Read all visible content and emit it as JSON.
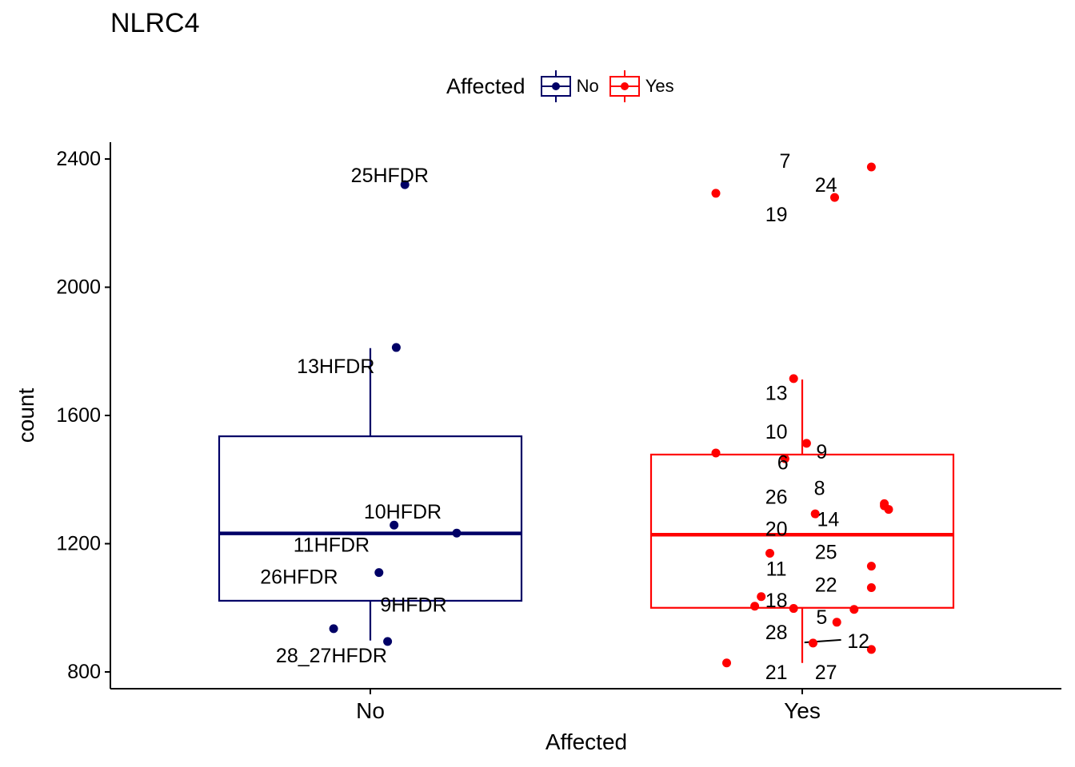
{
  "chart_data": {
    "type": "box",
    "title": "NLRC4",
    "xlabel": "Affected",
    "ylabel": "count",
    "ylim": [
      750,
      2450
    ],
    "yticks": [
      800,
      1200,
      1600,
      2000,
      2400
    ],
    "categories": [
      "No",
      "Yes"
    ],
    "legend": {
      "title": "Affected",
      "position": "top",
      "entries": [
        "No",
        "Yes"
      ]
    },
    "colors": {
      "No": "#000066",
      "Yes": "#ff0000"
    },
    "boxes": [
      {
        "group": "No",
        "q1": 1022,
        "median": 1232,
        "q3": 1535,
        "whisker_low": 898,
        "whisker_high": 1810
      },
      {
        "group": "Yes",
        "q1": 1000,
        "median": 1228,
        "q3": 1478,
        "whisker_low": 828,
        "whisker_high": 1712
      }
    ],
    "points": [
      {
        "group": "No",
        "x": 1.08,
        "y": 2320
      },
      {
        "group": "No",
        "x": 1.06,
        "y": 1812
      },
      {
        "group": "No",
        "x": 1.055,
        "y": 1258
      },
      {
        "group": "No",
        "x": 1.2,
        "y": 1233
      },
      {
        "group": "No",
        "x": 1.02,
        "y": 1110
      },
      {
        "group": "No",
        "x": 0.915,
        "y": 935
      },
      {
        "group": "No",
        "x": 1.04,
        "y": 895
      },
      {
        "group": "Yes",
        "x": 2.16,
        "y": 2375
      },
      {
        "group": "Yes",
        "x": 1.8,
        "y": 2293
      },
      {
        "group": "Yes",
        "x": 2.075,
        "y": 2280
      },
      {
        "group": "Yes",
        "x": 1.98,
        "y": 1715
      },
      {
        "group": "Yes",
        "x": 2.01,
        "y": 1513
      },
      {
        "group": "Yes",
        "x": 1.8,
        "y": 1483
      },
      {
        "group": "Yes",
        "x": 1.96,
        "y": 1465
      },
      {
        "group": "Yes",
        "x": 2.19,
        "y": 1325
      },
      {
        "group": "Yes",
        "x": 2.19,
        "y": 1318
      },
      {
        "group": "Yes",
        "x": 2.2,
        "y": 1307
      },
      {
        "group": "Yes",
        "x": 2.03,
        "y": 1293
      },
      {
        "group": "Yes",
        "x": 1.925,
        "y": 1170
      },
      {
        "group": "Yes",
        "x": 2.16,
        "y": 1130
      },
      {
        "group": "Yes",
        "x": 2.16,
        "y": 1063
      },
      {
        "group": "Yes",
        "x": 1.905,
        "y": 1035
      },
      {
        "group": "Yes",
        "x": 1.89,
        "y": 1005
      },
      {
        "group": "Yes",
        "x": 1.98,
        "y": 998
      },
      {
        "group": "Yes",
        "x": 2.12,
        "y": 995
      },
      {
        "group": "Yes",
        "x": 2.08,
        "y": 955
      },
      {
        "group": "Yes",
        "x": 2.025,
        "y": 890
      },
      {
        "group": "Yes",
        "x": 2.16,
        "y": 870
      },
      {
        "group": "Yes",
        "x": 1.825,
        "y": 828
      }
    ],
    "labels": [
      {
        "text": "25HFDR",
        "x": 1.045,
        "y": 2348
      },
      {
        "text": "13HFDR",
        "x": 0.92,
        "y": 1752
      },
      {
        "text": "10HFDR",
        "x": 1.075,
        "y": 1298
      },
      {
        "text": "11HFDR",
        "x": 0.91,
        "y": 1195
      },
      {
        "text": "26HFDR",
        "x": 0.835,
        "y": 1095
      },
      {
        "text": "9HFDR",
        "x": 1.1,
        "y": 1008
      },
      {
        "text": "28_27HFDR",
        "x": 0.91,
        "y": 850
      },
      {
        "text": "7",
        "x": 1.96,
        "y": 2393
      },
      {
        "text": "24",
        "x": 2.055,
        "y": 2318
      },
      {
        "text": "19",
        "x": 1.94,
        "y": 2225
      },
      {
        "text": "13",
        "x": 1.94,
        "y": 1668
      },
      {
        "text": "10",
        "x": 1.94,
        "y": 1548
      },
      {
        "text": "9",
        "x": 2.045,
        "y": 1485
      },
      {
        "text": "6",
        "x": 1.955,
        "y": 1452
      },
      {
        "text": "8",
        "x": 2.04,
        "y": 1372
      },
      {
        "text": "26",
        "x": 1.94,
        "y": 1345
      },
      {
        "text": "14",
        "x": 2.06,
        "y": 1275
      },
      {
        "text": "20",
        "x": 1.94,
        "y": 1245
      },
      {
        "text": "25",
        "x": 2.055,
        "y": 1172
      },
      {
        "text": "11",
        "x": 1.94,
        "y": 1120
      },
      {
        "text": "22",
        "x": 2.055,
        "y": 1070
      },
      {
        "text": "18",
        "x": 1.94,
        "y": 1022
      },
      {
        "text": "5",
        "x": 2.045,
        "y": 970
      },
      {
        "text": "28",
        "x": 1.94,
        "y": 922
      },
      {
        "text": "12",
        "x": 2.13,
        "y": 895
      },
      {
        "text": "21",
        "x": 1.94,
        "y": 797
      },
      {
        "text": "27",
        "x": 2.055,
        "y": 797
      }
    ],
    "leaders": [
      {
        "x1": 2.005,
        "y1": 892,
        "x2": 2.09,
        "y2": 900
      }
    ]
  }
}
